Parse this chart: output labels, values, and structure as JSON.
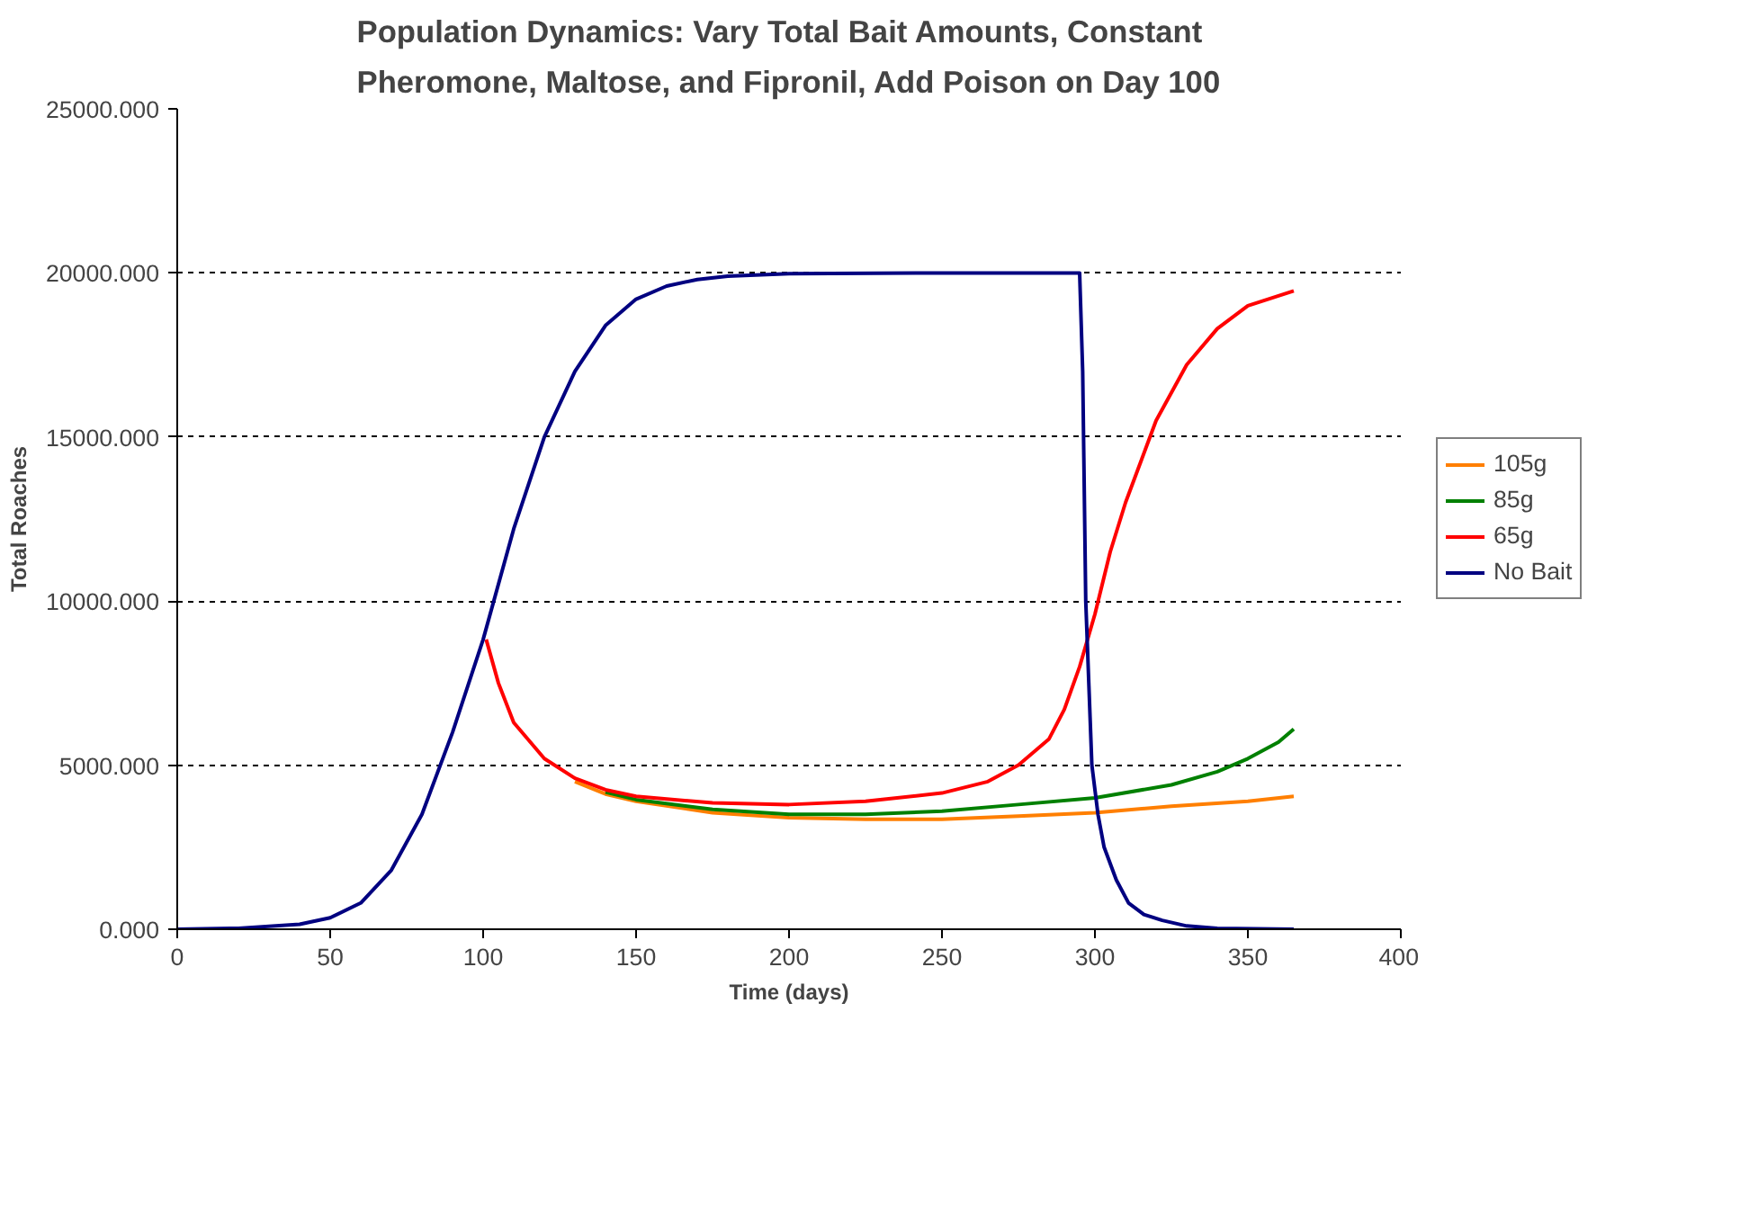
{
  "chart_data": {
    "type": "line",
    "title": "Population Dynamics: Vary Total Bait Amounts, Constant Pheromone, Maltose, and Fipronil, Add Poison on Day 100",
    "xlabel": "Time (days)",
    "ylabel": "Total Roaches",
    "xlim": [
      0,
      400
    ],
    "xticks": [
      0,
      50,
      100,
      150,
      200,
      250,
      300,
      350,
      400
    ],
    "ylim": [
      0,
      25000
    ],
    "yticks": [
      {
        "value": 0,
        "label": "0.000"
      },
      {
        "value": 5000,
        "label": "5000.000"
      },
      {
        "value": 10000,
        "label": "10000.000"
      },
      {
        "value": 15000,
        "label": "15000.000"
      },
      {
        "value": 20000,
        "label": "20000.000"
      },
      {
        "value": 25000,
        "label": "25000.000"
      }
    ],
    "grid": "y",
    "legend": "right",
    "line_style": "solid",
    "marker": "none",
    "series": [
      {
        "name": "105g",
        "color": "#ff7f00",
        "x": [
          130,
          140,
          150,
          175,
          200,
          225,
          250,
          275,
          300,
          325,
          350,
          365
        ],
        "values": [
          4500,
          4120,
          3900,
          3550,
          3400,
          3350,
          3350,
          3450,
          3550,
          3750,
          3900,
          4050
        ]
      },
      {
        "name": "85g",
        "color": "#008000",
        "x": [
          140,
          150,
          175,
          200,
          225,
          250,
          275,
          300,
          325,
          340,
          350,
          360,
          365
        ],
        "values": [
          4180,
          3950,
          3650,
          3500,
          3500,
          3600,
          3800,
          4000,
          4400,
          4800,
          5200,
          5700,
          6100
        ]
      },
      {
        "name": "65g",
        "color": "#ff0000",
        "x": [
          101,
          105,
          110,
          120,
          130,
          140,
          150,
          175,
          200,
          225,
          250,
          265,
          275,
          285,
          290,
          295,
          300,
          305,
          310,
          320,
          330,
          340,
          350,
          365
        ],
        "values": [
          8830,
          7500,
          6300,
          5200,
          4600,
          4250,
          4050,
          3850,
          3800,
          3900,
          4150,
          4500,
          5000,
          5800,
          6700,
          8000,
          9600,
          11500,
          13000,
          15500,
          17200,
          18300,
          19000,
          19450
        ]
      },
      {
        "name": "No Bait",
        "color": "#000080",
        "x": [
          0,
          20,
          40,
          50,
          60,
          70,
          80,
          90,
          100,
          110,
          120,
          130,
          140,
          150,
          160,
          170,
          180,
          200,
          250,
          295,
          296,
          297,
          299,
          301,
          303,
          307,
          311,
          316,
          322,
          330,
          340,
          365
        ],
        "values": [
          0,
          30,
          150,
          350,
          800,
          1800,
          3500,
          6000,
          8830,
          12200,
          15000,
          17000,
          18400,
          19200,
          19600,
          19800,
          19900,
          19980,
          20000,
          20000,
          17000,
          10000,
          5000,
          3500,
          2500,
          1500,
          800,
          450,
          270,
          100,
          30,
          0
        ]
      }
    ]
  }
}
